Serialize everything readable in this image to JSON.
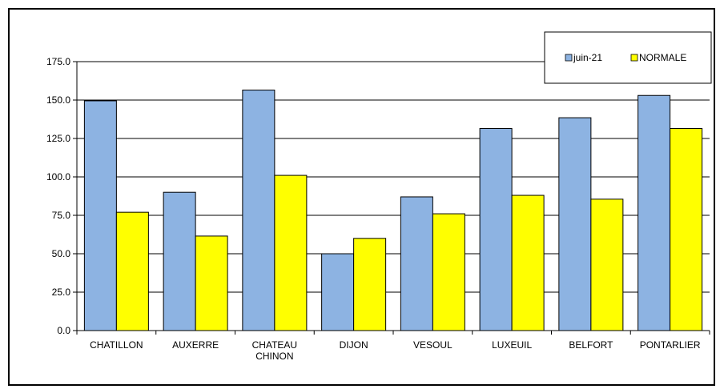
{
  "chart_data": {
    "type": "bar",
    "categories": [
      "CHATILLON",
      "AUXERRE",
      "CHATEAU\nCHINON",
      "DIJON",
      "VESOUL",
      "LUXEUIL",
      "BELFORT",
      "PONTARLIER"
    ],
    "series": [
      {
        "name": "juin-21",
        "values": [
          149.5,
          90.0,
          156.5,
          50.0,
          87.0,
          131.5,
          138.5,
          153.0
        ],
        "color": "#8db3e2"
      },
      {
        "name": "NORMALE",
        "values": [
          77.0,
          61.5,
          101.0,
          60.0,
          76.0,
          88.0,
          85.5,
          131.5
        ],
        "color": "#ffff00"
      }
    ],
    "yticks": [
      "0.0",
      "25.0",
      "50.0",
      "75.0",
      "100.0",
      "125.0",
      "150.0",
      "175.0"
    ],
    "ylim": [
      0,
      175
    ],
    "grid": true,
    "legend_position": "top-right",
    "title": "",
    "xlabel": "",
    "ylabel": ""
  }
}
